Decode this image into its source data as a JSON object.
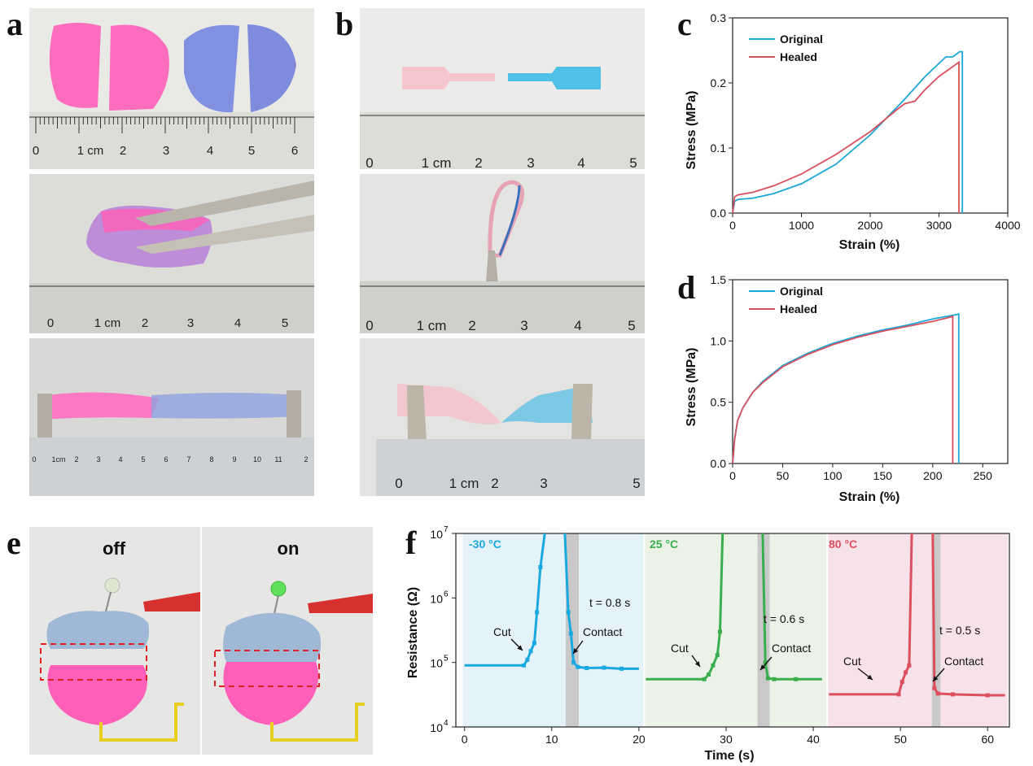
{
  "panels": {
    "a": "a",
    "b": "b",
    "c": "c",
    "d": "d",
    "e": "e",
    "f": "f"
  },
  "colors": {
    "original": "#1aa7d9",
    "healed": "#d8505e",
    "pink": "#ff4fb0",
    "blue": "#6f7fd8",
    "cold_bg": "#e4f2fa",
    "room_bg": "#eaf3e6",
    "hot_bg": "#f8e2ea",
    "cold_line": "#19a9e0",
    "room_line": "#3aae4f",
    "hot_line": "#db4f5e",
    "gray_band": "#c9c9c9"
  },
  "photo_a": {
    "ruler1": [
      "0",
      "1 cm",
      "2",
      "3",
      "4",
      "5",
      "6"
    ],
    "ruler2": [
      "0",
      "1 cm",
      "2",
      "3",
      "4",
      "5"
    ],
    "ruler3": [
      "0",
      "1cm",
      "2",
      "3",
      "4",
      "5",
      "6",
      "7",
      "8",
      "9",
      "10",
      "11",
      "2"
    ]
  },
  "photo_b": {
    "ruler1": [
      "0",
      "1 cm",
      "2",
      "3",
      "4",
      "5"
    ],
    "ruler2": [
      "0",
      "1 cm",
      "2",
      "3",
      "4",
      "5"
    ],
    "ruler3": [
      "0",
      "1 cm",
      "2",
      "3",
      "5"
    ]
  },
  "photo_e": {
    "off": "off",
    "on": "on"
  },
  "chart_data": [
    {
      "panel": "c",
      "type": "line",
      "xlabel": "Strain (%)",
      "ylabel": "Stress (MPa)",
      "xlim": [
        0,
        4000
      ],
      "ylim": [
        0,
        0.3
      ],
      "xticks": [
        0,
        1000,
        2000,
        3000,
        4000
      ],
      "yticks": [
        0.0,
        0.1,
        0.2,
        0.3
      ],
      "xtick_labels": [
        "0",
        "1000",
        "2000",
        "3000",
        "4000"
      ],
      "ytick_labels": [
        "0.0",
        "0.1",
        "0.2",
        "0.3"
      ],
      "legend": [
        "Original",
        "Healed"
      ],
      "series": [
        {
          "name": "Original",
          "x": [
            0,
            30,
            60,
            80,
            300,
            600,
            1000,
            1500,
            2000,
            2500,
            2800,
            3000,
            3100,
            3200,
            3300,
            3340,
            3340
          ],
          "y": [
            0,
            0.018,
            0.02,
            0.021,
            0.023,
            0.03,
            0.045,
            0.075,
            0.12,
            0.175,
            0.21,
            0.23,
            0.24,
            0.24,
            0.248,
            0.248,
            0
          ]
        },
        {
          "name": "Healed",
          "x": [
            0,
            30,
            60,
            80,
            300,
            600,
            1000,
            1500,
            2000,
            2400,
            2500,
            2650,
            2800,
            3000,
            3200,
            3290,
            3290
          ],
          "y": [
            0,
            0.025,
            0.027,
            0.028,
            0.032,
            0.042,
            0.06,
            0.09,
            0.125,
            0.16,
            0.168,
            0.172,
            0.19,
            0.21,
            0.225,
            0.232,
            0
          ]
        }
      ]
    },
    {
      "panel": "d",
      "type": "line",
      "xlabel": "Strain (%)",
      "ylabel": "Stress (MPa)",
      "xlim": [
        0,
        275
      ],
      "ylim": [
        0,
        1.5
      ],
      "xticks": [
        0,
        50,
        100,
        150,
        200,
        250
      ],
      "yticks": [
        0.0,
        0.5,
        1.0,
        1.5
      ],
      "xtick_labels": [
        "0",
        "50",
        "100",
        "150",
        "200",
        "250"
      ],
      "ytick_labels": [
        "0.0",
        "0.5",
        "1.0",
        "1.5"
      ],
      "legend": [
        "Original",
        "Healed"
      ],
      "series": [
        {
          "name": "Original",
          "x": [
            0,
            2,
            5,
            10,
            20,
            30,
            50,
            75,
            100,
            125,
            150,
            175,
            200,
            220,
            226,
            226
          ],
          "y": [
            0,
            0.2,
            0.35,
            0.45,
            0.58,
            0.67,
            0.8,
            0.9,
            0.98,
            1.04,
            1.09,
            1.13,
            1.18,
            1.21,
            1.22,
            0
          ]
        },
        {
          "name": "Healed",
          "x": [
            0,
            2,
            5,
            10,
            20,
            30,
            50,
            75,
            100,
            125,
            150,
            175,
            200,
            215,
            220,
            220
          ],
          "y": [
            0,
            0.2,
            0.35,
            0.45,
            0.58,
            0.66,
            0.79,
            0.89,
            0.97,
            1.03,
            1.08,
            1.12,
            1.16,
            1.19,
            1.2,
            0
          ]
        }
      ]
    },
    {
      "panel": "f",
      "type": "line",
      "yscale": "log",
      "xlabel": "Time (s)",
      "ylabel": "Resistance (Ω)",
      "xlim": [
        -1,
        62.5
      ],
      "ylim_exp": [
        4,
        7
      ],
      "xticks": [
        0,
        10,
        20,
        30,
        40,
        50,
        60
      ],
      "xtick_labels": [
        "0",
        "10",
        "20",
        "30",
        "40",
        "50",
        "60"
      ],
      "yticks_exp": [
        4,
        5,
        6,
        7
      ],
      "ytick_base": "10",
      "regions": [
        {
          "label": "-30 °C",
          "x": [
            -0.2,
            20.5
          ],
          "band": [
            11.6,
            13.1
          ],
          "time_label": "t = 0.8 s"
        },
        {
          "label": "25 °C",
          "x": [
            20.7,
            41.5
          ],
          "band": [
            33.6,
            35.0
          ],
          "time_label": "t = 0.6 s"
        },
        {
          "label": "80 °C",
          "x": [
            41.7,
            62.3
          ],
          "band": [
            53.6,
            54.6
          ],
          "time_label": "t = 0.5 s"
        }
      ],
      "annotations": [
        "Cut",
        "Contact",
        "Cut",
        "Contact",
        "Cut",
        "Contact"
      ],
      "series": [
        {
          "name": "-30 °C",
          "segments": [
            {
              "t": [
                0,
                6.8,
                7.2,
                7.6,
                8.0,
                8.3,
                8.7,
                9.2
              ],
              "v": [
                90000,
                90000,
                110000,
                150000,
                200000,
                600000,
                3000000,
                10000000
              ]
            },
            {
              "t": [
                11.5,
                11.9,
                12.2,
                12.5,
                13.0,
                14,
                16,
                18,
                20
              ],
              "v": [
                10000000,
                600000,
                280000,
                100000,
                85000,
                82000,
                83000,
                80000,
                80000
              ]
            }
          ]
        },
        {
          "name": "25 °C",
          "segments": [
            {
              "t": [
                20.8,
                27.5,
                28.0,
                28.5,
                29.0,
                29.3,
                29.6
              ],
              "v": [
                55000,
                55000,
                65000,
                90000,
                130000,
                300000,
                10000000
              ]
            },
            {
              "t": [
                34.2,
                34.5,
                34.8,
                35.5,
                38,
                41
              ],
              "v": [
                10000000,
                100000,
                57000,
                55000,
                55000,
                55000
              ]
            }
          ]
        },
        {
          "name": "80 °C",
          "segments": [
            {
              "t": [
                41.8,
                49.8,
                50.2,
                50.6,
                51.0,
                51.3
              ],
              "v": [
                32000,
                32000,
                50000,
                70000,
                90000,
                10000000
              ]
            },
            {
              "t": [
                53.7,
                53.9,
                54.3,
                56,
                60,
                62
              ],
              "v": [
                10000000,
                40000,
                33000,
                32000,
                31000,
                31000
              ]
            }
          ]
        }
      ]
    }
  ]
}
